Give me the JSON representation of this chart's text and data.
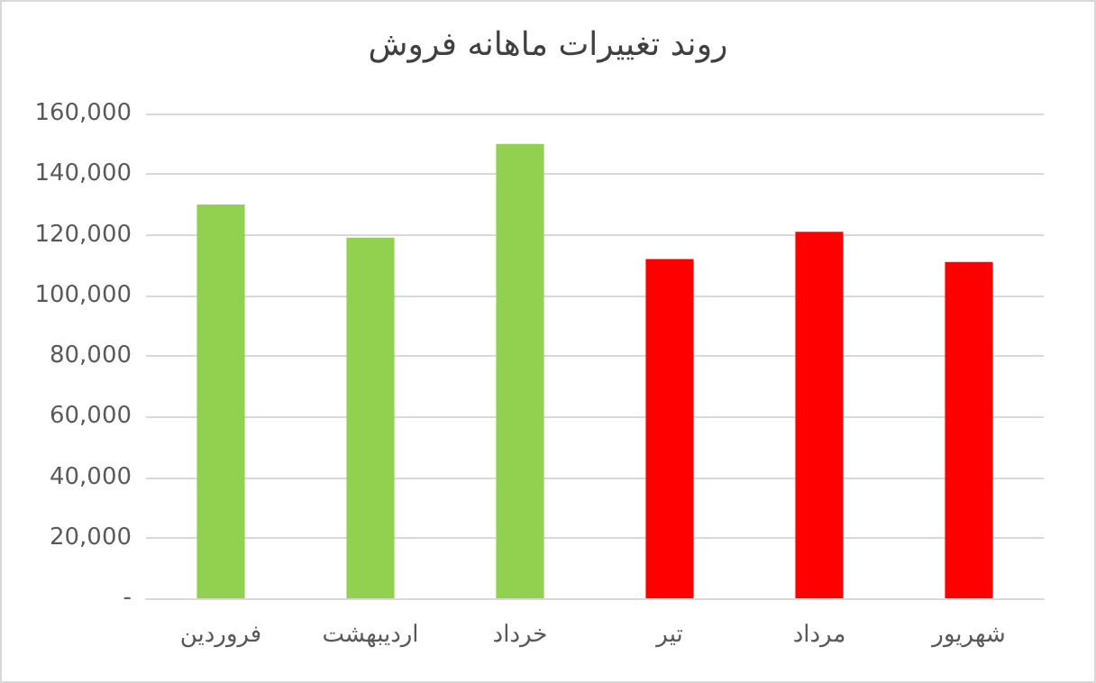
{
  "chart_data": {
    "type": "bar",
    "title": "روند تغییرات ماهانه فروش",
    "categories": [
      "فروردین",
      "اردیبهشت",
      "خرداد",
      "تیر",
      "مرداد",
      "شهریور"
    ],
    "values": [
      130000,
      119000,
      150000,
      112000,
      121000,
      111000
    ],
    "colors": [
      "#92d050",
      "#92d050",
      "#92d050",
      "#ff0000",
      "#ff0000",
      "#ff0000"
    ],
    "ylim": [
      0,
      160000
    ],
    "yticks": [
      {
        "value": 0,
        "label": "-"
      },
      {
        "value": 20000,
        "label": "20,000"
      },
      {
        "value": 40000,
        "label": "40,000"
      },
      {
        "value": 60000,
        "label": "60,000"
      },
      {
        "value": 80000,
        "label": "80,000"
      },
      {
        "value": 100000,
        "label": "100,000"
      },
      {
        "value": 120000,
        "label": "120,000"
      },
      {
        "value": 140000,
        "label": "140,000"
      },
      {
        "value": 160000,
        "label": "160,000"
      }
    ],
    "grid": "y"
  }
}
